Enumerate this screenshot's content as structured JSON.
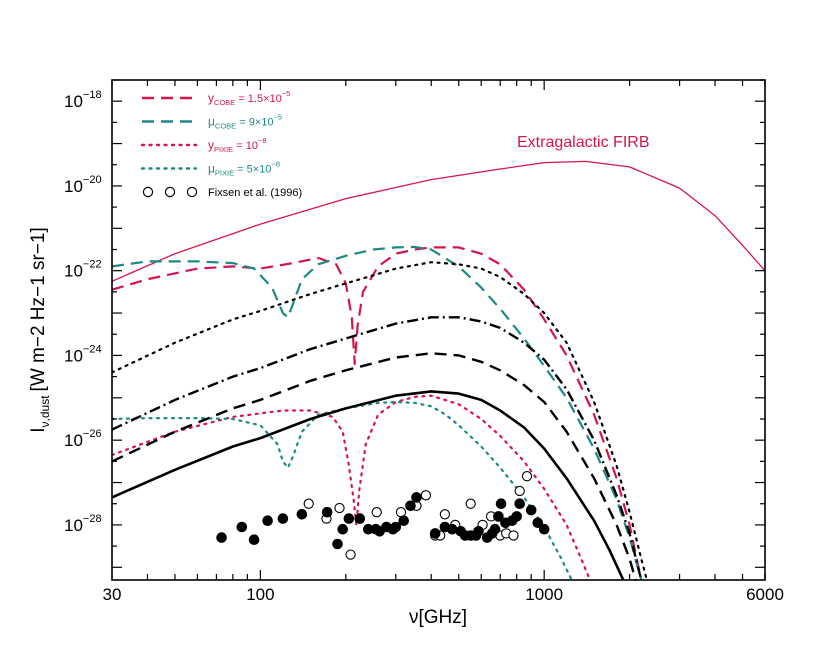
{
  "chart_data": {
    "type": "line",
    "title": "",
    "xlabel": "ν[GHz]",
    "ylabel_main": "I",
    "ylabel_sub": "ν,dust",
    "ylabel_units": "[W m−2 Hz−1 sr−1]",
    "xscale": "log",
    "yscale": "log",
    "xlim": [
      30,
      6000
    ],
    "ylim_log10": [
      -29.3,
      -17.5
    ],
    "x_ticks": [
      {
        "value": 30,
        "label": "30"
      },
      {
        "value": 100,
        "label": "100"
      },
      {
        "value": 1000,
        "label": "1000"
      },
      {
        "value": 6000,
        "label": "6000"
      }
    ],
    "y_ticks": [
      {
        "exp": -18,
        "base": "10",
        "sup": "−18"
      },
      {
        "exp": -20,
        "base": "10",
        "sup": "−20"
      },
      {
        "exp": -22,
        "base": "10",
        "sup": "−22"
      },
      {
        "exp": -24,
        "base": "10",
        "sup": "−24"
      },
      {
        "exp": -26,
        "base": "10",
        "sup": "−26"
      },
      {
        "exp": -28,
        "base": "10",
        "sup": "−28"
      }
    ],
    "annotation": {
      "text": "Extragalactic FIRB",
      "color": "#d6164a"
    },
    "legend": [
      {
        "key": "y_cobe",
        "sym": "y",
        "sub": "COBE",
        "rest": " = 1.5×10",
        "sup": "−5",
        "color": "#d6164a",
        "style": "dashed"
      },
      {
        "key": "mu_cobe",
        "sym": "μ",
        "sub": "COBE",
        "rest": " = 9×10",
        "sup": "−5",
        "color": "#1b8a86",
        "style": "dashed"
      },
      {
        "key": "y_pixie",
        "sym": "y",
        "sub": "PIXIE",
        "rest": " = 10",
        "sup": "−8",
        "color": "#d6164a",
        "style": "dotted"
      },
      {
        "key": "mu_pixie",
        "sym": "μ",
        "sub": "PIXIE",
        "rest": " = 5×10",
        "sup": "−8",
        "color": "#1b8a86",
        "style": "dotted"
      },
      {
        "key": "fixsen",
        "sym": "",
        "sub": "",
        "rest": "Fixsen et al. (1996)",
        "sup": "",
        "color": "#000000",
        "style": "markers"
      }
    ],
    "series": [
      {
        "name": "Extragalactic FIRB",
        "color": "#d6164a",
        "style": "solid",
        "width": 1.3,
        "points": [
          [
            30,
            -22.25
          ],
          [
            50,
            -21.6
          ],
          [
            100,
            -20.9
          ],
          [
            200,
            -20.3
          ],
          [
            400,
            -19.85
          ],
          [
            700,
            -19.6
          ],
          [
            1000,
            -19.45
          ],
          [
            1400,
            -19.42
          ],
          [
            2000,
            -19.55
          ],
          [
            3000,
            -20.05
          ],
          [
            4000,
            -20.7
          ],
          [
            5000,
            -21.4
          ],
          [
            6000,
            -22.0
          ]
        ]
      },
      {
        "name": "y_COBE = 1.5×10^-5",
        "color": "#d6164a",
        "style": "dashed",
        "width": 2.2,
        "points": [
          [
            30,
            -22.45
          ],
          [
            40,
            -22.2
          ],
          [
            60,
            -21.95
          ],
          [
            80,
            -21.9
          ],
          [
            100,
            -21.95
          ],
          [
            130,
            -21.82
          ],
          [
            160,
            -21.7
          ],
          [
            185,
            -21.85
          ],
          [
            200,
            -22.3
          ],
          [
            210,
            -23.1
          ],
          [
            215,
            -24.2
          ],
          [
            220,
            -23.3
          ],
          [
            230,
            -22.5
          ],
          [
            260,
            -21.9
          ],
          [
            300,
            -21.6
          ],
          [
            350,
            -21.5
          ],
          [
            400,
            -21.45
          ],
          [
            500,
            -21.45
          ],
          [
            600,
            -21.6
          ],
          [
            700,
            -21.85
          ],
          [
            850,
            -22.45
          ],
          [
            1000,
            -23.15
          ],
          [
            1200,
            -24.0
          ],
          [
            1500,
            -25.4
          ],
          [
            1800,
            -26.9
          ],
          [
            2000,
            -28.0
          ],
          [
            2150,
            -29.0
          ],
          [
            2200,
            -29.3
          ]
        ]
      },
      {
        "name": "μ_COBE = 9×10^-5",
        "color": "#1b8a86",
        "style": "dashed",
        "width": 2.2,
        "points": [
          [
            30,
            -21.9
          ],
          [
            40,
            -21.78
          ],
          [
            60,
            -21.78
          ],
          [
            80,
            -21.82
          ],
          [
            95,
            -21.95
          ],
          [
            110,
            -22.4
          ],
          [
            120,
            -23.0
          ],
          [
            125,
            -23.1
          ],
          [
            130,
            -22.8
          ],
          [
            140,
            -22.2
          ],
          [
            160,
            -21.85
          ],
          [
            200,
            -21.65
          ],
          [
            250,
            -21.5
          ],
          [
            300,
            -21.45
          ],
          [
            350,
            -21.44
          ],
          [
            400,
            -21.5
          ],
          [
            500,
            -21.9
          ],
          [
            600,
            -22.4
          ],
          [
            700,
            -22.9
          ],
          [
            850,
            -23.6
          ],
          [
            1000,
            -24.25
          ],
          [
            1200,
            -25.0
          ],
          [
            1500,
            -26.2
          ],
          [
            1800,
            -27.4
          ],
          [
            2000,
            -28.3
          ],
          [
            2200,
            -29.3
          ]
        ]
      },
      {
        "name": "y_PIXIE = 10^-8",
        "color": "#d6164a",
        "style": "dotted",
        "width": 2.2,
        "points": [
          [
            30,
            -26.35
          ],
          [
            50,
            -25.8
          ],
          [
            80,
            -25.45
          ],
          [
            120,
            -25.3
          ],
          [
            150,
            -25.3
          ],
          [
            180,
            -25.45
          ],
          [
            195,
            -25.8
          ],
          [
            205,
            -26.6
          ],
          [
            213,
            -27.4
          ],
          [
            218,
            -28.0
          ],
          [
            223,
            -27.2
          ],
          [
            235,
            -26.1
          ],
          [
            260,
            -25.4
          ],
          [
            300,
            -25.1
          ],
          [
            350,
            -24.98
          ],
          [
            400,
            -24.95
          ],
          [
            500,
            -25.15
          ],
          [
            600,
            -25.5
          ],
          [
            700,
            -25.9
          ],
          [
            850,
            -26.5
          ],
          [
            1000,
            -27.15
          ],
          [
            1200,
            -28.0
          ],
          [
            1350,
            -28.8
          ],
          [
            1450,
            -29.3
          ]
        ]
      },
      {
        "name": "μ_PIXIE = 5×10^-8",
        "color": "#1b8a86",
        "style": "dotted",
        "width": 2.2,
        "points": [
          [
            30,
            -25.5
          ],
          [
            40,
            -25.48
          ],
          [
            60,
            -25.48
          ],
          [
            80,
            -25.5
          ],
          [
            100,
            -25.65
          ],
          [
            115,
            -26.1
          ],
          [
            120,
            -26.5
          ],
          [
            125,
            -26.65
          ],
          [
            130,
            -26.4
          ],
          [
            140,
            -25.8
          ],
          [
            160,
            -25.4
          ],
          [
            200,
            -25.25
          ],
          [
            260,
            -25.12
          ],
          [
            300,
            -25.1
          ],
          [
            350,
            -25.12
          ],
          [
            400,
            -25.2
          ],
          [
            450,
            -25.4
          ],
          [
            500,
            -25.65
          ],
          [
            600,
            -26.15
          ],
          [
            700,
            -26.65
          ],
          [
            850,
            -27.35
          ],
          [
            1000,
            -28.05
          ],
          [
            1150,
            -28.8
          ],
          [
            1250,
            -29.3
          ]
        ]
      },
      {
        "name": "black dotted",
        "color": "#000000",
        "style": "dotted",
        "width": 2.2,
        "points": [
          [
            30,
            -24.4
          ],
          [
            50,
            -23.7
          ],
          [
            80,
            -23.15
          ],
          [
            100,
            -22.95
          ],
          [
            150,
            -22.55
          ],
          [
            200,
            -22.3
          ],
          [
            300,
            -21.95
          ],
          [
            400,
            -21.8
          ],
          [
            500,
            -21.85
          ],
          [
            600,
            -21.95
          ],
          [
            700,
            -22.15
          ],
          [
            850,
            -22.55
          ],
          [
            1000,
            -23.0
          ],
          [
            1200,
            -23.7
          ],
          [
            1500,
            -25.1
          ],
          [
            1800,
            -26.6
          ],
          [
            2000,
            -27.7
          ],
          [
            2200,
            -28.8
          ],
          [
            2300,
            -29.3
          ]
        ]
      },
      {
        "name": "black dash-dot",
        "color": "#000000",
        "style": "dashdot",
        "width": 2.4,
        "points": [
          [
            30,
            -25.75
          ],
          [
            50,
            -25.05
          ],
          [
            80,
            -24.5
          ],
          [
            100,
            -24.3
          ],
          [
            150,
            -23.85
          ],
          [
            200,
            -23.6
          ],
          [
            300,
            -23.25
          ],
          [
            400,
            -23.1
          ],
          [
            500,
            -23.1
          ],
          [
            600,
            -23.2
          ],
          [
            700,
            -23.35
          ],
          [
            850,
            -23.7
          ],
          [
            1000,
            -24.1
          ],
          [
            1200,
            -24.8
          ],
          [
            1500,
            -26.0
          ],
          [
            1800,
            -27.3
          ],
          [
            2000,
            -28.2
          ],
          [
            2200,
            -29.3
          ]
        ]
      },
      {
        "name": "black dashed",
        "color": "#000000",
        "style": "dashed",
        "width": 2.4,
        "points": [
          [
            30,
            -26.5
          ],
          [
            50,
            -25.8
          ],
          [
            80,
            -25.25
          ],
          [
            100,
            -25.05
          ],
          [
            150,
            -24.6
          ],
          [
            200,
            -24.35
          ],
          [
            300,
            -24.05
          ],
          [
            400,
            -23.95
          ],
          [
            500,
            -24.0
          ],
          [
            600,
            -24.15
          ],
          [
            700,
            -24.35
          ],
          [
            850,
            -24.7
          ],
          [
            1000,
            -25.1
          ],
          [
            1200,
            -25.8
          ],
          [
            1500,
            -26.9
          ],
          [
            1800,
            -28.0
          ],
          [
            2000,
            -28.8
          ],
          [
            2100,
            -29.3
          ]
        ]
      },
      {
        "name": "black solid",
        "color": "#000000",
        "style": "solid",
        "width": 2.6,
        "points": [
          [
            30,
            -27.35
          ],
          [
            50,
            -26.7
          ],
          [
            80,
            -26.15
          ],
          [
            100,
            -25.95
          ],
          [
            150,
            -25.5
          ],
          [
            200,
            -25.25
          ],
          [
            300,
            -24.95
          ],
          [
            400,
            -24.85
          ],
          [
            500,
            -24.9
          ],
          [
            600,
            -25.05
          ],
          [
            700,
            -25.3
          ],
          [
            850,
            -25.7
          ],
          [
            1000,
            -26.2
          ],
          [
            1200,
            -26.9
          ],
          [
            1500,
            -27.9
          ],
          [
            1700,
            -28.6
          ],
          [
            1900,
            -29.3
          ]
        ]
      }
    ],
    "fixsen_filled": [
      [
        73,
        -28.3
      ],
      [
        86,
        -28.05
      ],
      [
        95,
        -28.35
      ],
      [
        106,
        -27.9
      ],
      [
        120,
        -27.85
      ],
      [
        140,
        -27.75
      ],
      [
        172,
        -27.7
      ],
      [
        187,
        -28.45
      ],
      [
        195,
        -28.1
      ],
      [
        205,
        -27.85
      ],
      [
        224,
        -27.85
      ],
      [
        240,
        -28.1
      ],
      [
        255,
        -28.1
      ],
      [
        263,
        -28.15
      ],
      [
        278,
        -28.05
      ],
      [
        293,
        -28.1
      ],
      [
        300,
        -28.05
      ],
      [
        320,
        -27.9
      ],
      [
        338,
        -27.55
      ],
      [
        355,
        -27.35
      ],
      [
        413,
        -28.2
      ],
      [
        447,
        -28.05
      ],
      [
        474,
        -28.1
      ],
      [
        508,
        -28.15
      ],
      [
        527,
        -28.25
      ],
      [
        551,
        -28.25
      ],
      [
        575,
        -28.25
      ],
      [
        587,
        -28.15
      ],
      [
        630,
        -28.3
      ],
      [
        656,
        -28.2
      ],
      [
        671,
        -28.1
      ],
      [
        690,
        -27.8
      ],
      [
        705,
        -27.5
      ],
      [
        730,
        -27.95
      ],
      [
        770,
        -27.9
      ],
      [
        800,
        -27.8
      ],
      [
        820,
        -27.5
      ],
      [
        900,
        -27.65
      ],
      [
        950,
        -27.95
      ],
      [
        1000,
        -28.1
      ]
    ],
    "fixsen_open": [
      [
        148,
        -27.5
      ],
      [
        171,
        -27.85
      ],
      [
        190,
        -27.6
      ],
      [
        208,
        -28.7
      ],
      [
        257,
        -27.7
      ],
      [
        313,
        -27.7
      ],
      [
        355,
        -27.55
      ],
      [
        383,
        -27.3
      ],
      [
        413,
        -28.25
      ],
      [
        430,
        -28.25
      ],
      [
        447,
        -27.75
      ],
      [
        486,
        -28.0
      ],
      [
        551,
        -27.5
      ],
      [
        607,
        -28.0
      ],
      [
        650,
        -27.8
      ],
      [
        700,
        -28.25
      ],
      [
        735,
        -28.2
      ],
      [
        780,
        -28.25
      ],
      [
        820,
        -27.2
      ],
      [
        870,
        -26.85
      ]
    ]
  }
}
